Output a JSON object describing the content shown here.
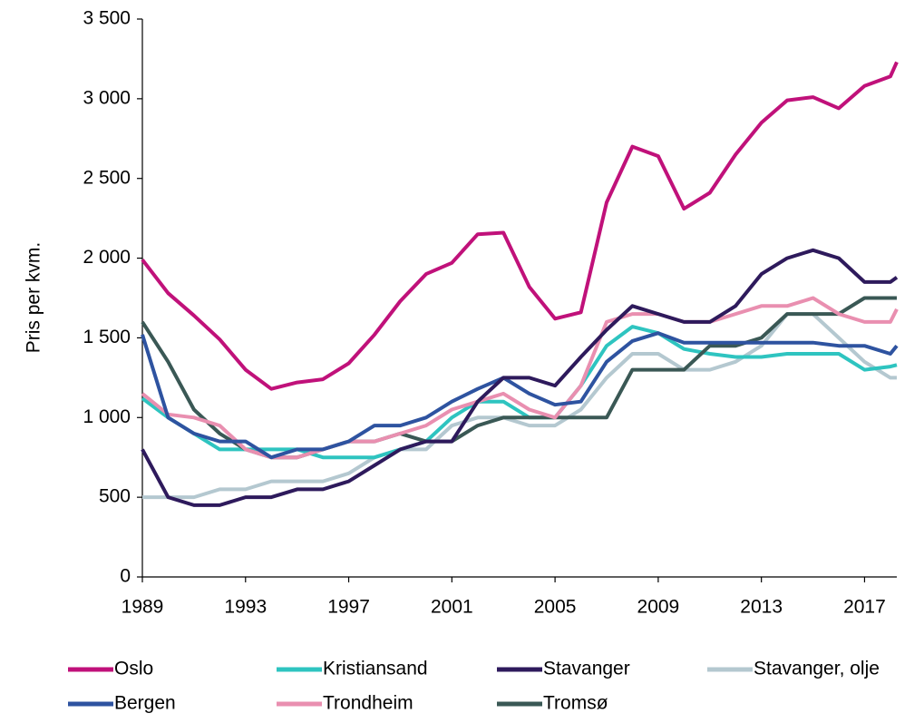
{
  "chart_data": {
    "type": "line",
    "y_label": "Pris per kvm.",
    "x": [
      1989,
      1990,
      1991,
      1992,
      1993,
      1994,
      1995,
      1996,
      1997,
      1998,
      1999,
      2000,
      2001,
      2002,
      2003,
      2004,
      2005,
      2006,
      2007,
      2008,
      2009,
      2010,
      2011,
      2012,
      2013,
      2014,
      2015,
      2016,
      2017,
      2018,
      2018.25
    ],
    "series": [
      {
        "name": "Oslo",
        "color": "#c0117a",
        "values": [
          1990,
          1780,
          1640,
          1490,
          1300,
          1180,
          1220,
          1240,
          1340,
          1520,
          1730,
          1900,
          1970,
          2150,
          2160,
          1820,
          1620,
          1660,
          2350,
          2700,
          2640,
          2310,
          2410,
          2650,
          2850,
          2990,
          3010,
          2940,
          3080,
          3140,
          3230
        ]
      },
      {
        "name": "Kristiansand",
        "color": "#2ec4c0",
        "values": [
          1120,
          1000,
          900,
          800,
          800,
          800,
          800,
          750,
          750,
          750,
          800,
          850,
          1000,
          1100,
          1100,
          1000,
          1000,
          1200,
          1450,
          1570,
          1530,
          1430,
          1400,
          1380,
          1380,
          1400,
          1400,
          1400,
          1300,
          1320,
          1330
        ]
      },
      {
        "name": "Stavanger",
        "color": "#2e1a5c",
        "values": [
          800,
          500,
          450,
          450,
          500,
          500,
          550,
          550,
          600,
          700,
          800,
          850,
          850,
          1100,
          1250,
          1250,
          1200,
          1380,
          1550,
          1700,
          1650,
          1600,
          1600,
          1700,
          1900,
          2000,
          2050,
          2000,
          1850,
          1850,
          1880
        ]
      },
      {
        "name": "Stavanger, olje",
        "color": "#b4c8d0",
        "values": [
          500,
          500,
          500,
          550,
          550,
          600,
          600,
          600,
          650,
          750,
          800,
          800,
          950,
          1000,
          1000,
          950,
          950,
          1050,
          1250,
          1400,
          1400,
          1300,
          1300,
          1350,
          1450,
          1650,
          1650,
          1500,
          1350,
          1250,
          1250
        ]
      },
      {
        "name": "Bergen",
        "color": "#2e53a0",
        "values": [
          1520,
          1000,
          900,
          850,
          850,
          750,
          800,
          800,
          850,
          950,
          950,
          1000,
          1100,
          1180,
          1250,
          1150,
          1080,
          1100,
          1350,
          1480,
          1530,
          1470,
          1470,
          1470,
          1470,
          1470,
          1470,
          1450,
          1450,
          1400,
          1450
        ]
      },
      {
        "name": "Trondheim",
        "color": "#e98fb0",
        "values": [
          1150,
          1020,
          1000,
          950,
          800,
          750,
          750,
          800,
          850,
          850,
          900,
          950,
          1050,
          1100,
          1150,
          1050,
          1000,
          1200,
          1600,
          1650,
          1650,
          1600,
          1600,
          1650,
          1700,
          1700,
          1750,
          1650,
          1600,
          1600,
          1680
        ]
      },
      {
        "name": "Tromsø",
        "color": "#3a5855",
        "values": [
          1600,
          1350,
          1050,
          900,
          800,
          750,
          750,
          800,
          850,
          850,
          900,
          850,
          850,
          950,
          1000,
          1000,
          1000,
          1000,
          1000,
          1300,
          1300,
          1300,
          1450,
          1450,
          1500,
          1650,
          1650,
          1650,
          1750,
          1750,
          1750
        ]
      }
    ],
    "xlim": [
      1989,
      2018.25
    ],
    "xticks": [
      1989,
      1993,
      1997,
      2001,
      2005,
      2009,
      2013,
      2017
    ],
    "ylim": [
      0,
      3500
    ],
    "yticks": [
      0,
      500,
      {
        "value": 1000,
        "label": "1 000"
      },
      {
        "value": 1500,
        "label": "1 500"
      },
      {
        "value": 2000,
        "label": "2 000"
      },
      {
        "value": 2500,
        "label": "2 500"
      },
      {
        "value": 3000,
        "label": "3 000"
      },
      {
        "value": 3500,
        "label": "3 500"
      }
    ]
  }
}
